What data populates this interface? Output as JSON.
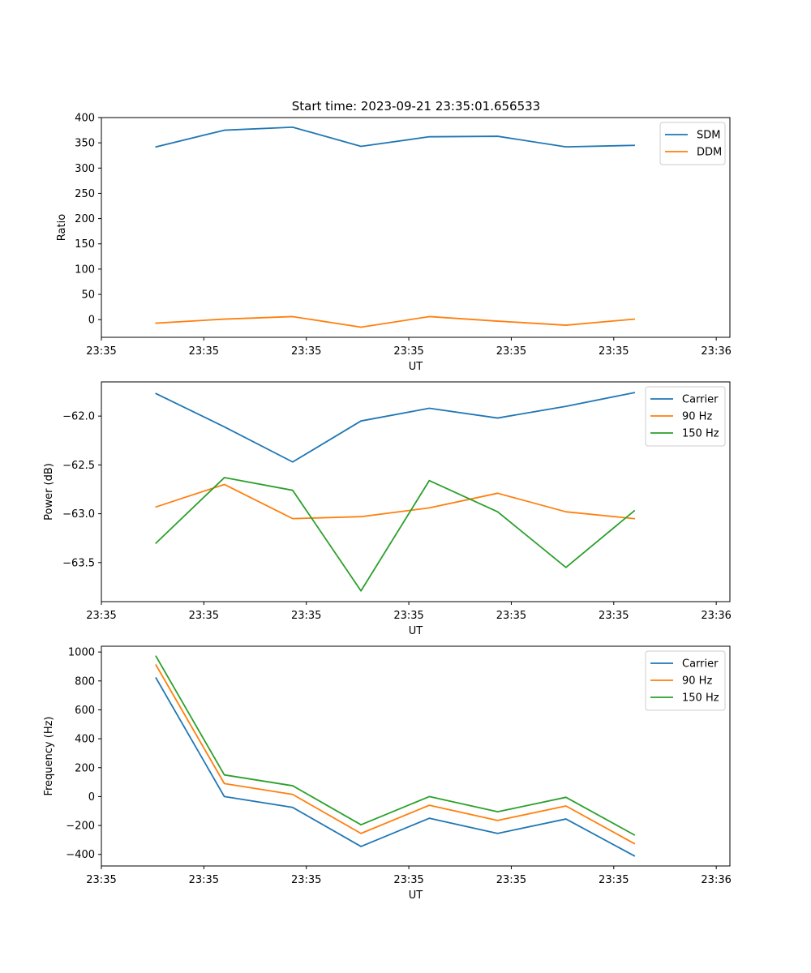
{
  "figure": {
    "title": "Start time: 2023-09-21 23:35:01.656533"
  },
  "colors": {
    "blue": "#1f77b4",
    "orange": "#ff7f0e",
    "green": "#2ca02c"
  },
  "chart_data": [
    {
      "type": "line",
      "title": "Start time: 2023-09-21 23:35:01.656533",
      "xlabel": "UT",
      "ylabel": "Ratio",
      "x": [
        1,
        2,
        3,
        4,
        5,
        6,
        7,
        8
      ],
      "xlim": [
        0.2,
        9.4
      ],
      "xticks": [
        0.2,
        1.7,
        3.2,
        4.7,
        6.2,
        7.7,
        9.2
      ],
      "xtick_labels": [
        "23:35",
        "23:35",
        "23:35",
        "23:35",
        "23:35",
        "23:35",
        "23:36"
      ],
      "ylim": [
        -35,
        400
      ],
      "yticks": [
        0,
        50,
        100,
        150,
        200,
        250,
        300,
        350,
        400
      ],
      "ytick_labels": [
        "0",
        "50",
        "100",
        "150",
        "200",
        "250",
        "300",
        "350",
        "400"
      ],
      "legend": "top-right",
      "series": [
        {
          "name": "SDM",
          "color": "#1f77b4",
          "values": [
            342,
            375,
            381,
            343,
            362,
            363,
            342,
            345
          ]
        },
        {
          "name": "DDM",
          "color": "#ff7f0e",
          "values": [
            -7,
            1,
            6,
            -15,
            6,
            -3,
            -11,
            1
          ]
        }
      ]
    },
    {
      "type": "line",
      "title": "",
      "xlabel": "UT",
      "ylabel": "Power (dB)",
      "x": [
        1,
        2,
        3,
        4,
        5,
        6,
        7,
        8
      ],
      "xlim": [
        0.2,
        9.4
      ],
      "xticks": [
        0.2,
        1.7,
        3.2,
        4.7,
        6.2,
        7.7,
        9.2
      ],
      "xtick_labels": [
        "23:35",
        "23:35",
        "23:35",
        "23:35",
        "23:35",
        "23:35",
        "23:36"
      ],
      "ylim": [
        -63.9,
        -61.65
      ],
      "yticks": [
        -63.5,
        -63.0,
        -62.5,
        -62.0
      ],
      "ytick_labels": [
        "−63.5",
        "−63.0",
        "−62.5",
        "−62.0"
      ],
      "legend": "top-right",
      "series": [
        {
          "name": "Carrier",
          "color": "#1f77b4",
          "values": [
            -61.77,
            -62.11,
            -62.47,
            -62.05,
            -61.92,
            -62.02,
            -61.9,
            -61.76
          ]
        },
        {
          "name": "90 Hz",
          "color": "#ff7f0e",
          "values": [
            -62.93,
            -62.7,
            -63.05,
            -63.03,
            -62.94,
            -62.79,
            -62.98,
            -63.05
          ]
        },
        {
          "name": "150 Hz",
          "color": "#2ca02c",
          "values": [
            -63.3,
            -62.63,
            -62.76,
            -63.79,
            -62.66,
            -62.98,
            -63.55,
            -62.97
          ]
        }
      ]
    },
    {
      "type": "line",
      "title": "",
      "xlabel": "UT",
      "ylabel": "Frequency (Hz)",
      "x": [
        1,
        2,
        3,
        4,
        5,
        6,
        7,
        8
      ],
      "xlim": [
        0.2,
        9.4
      ],
      "xticks": [
        0.2,
        1.7,
        3.2,
        4.7,
        6.2,
        7.7,
        9.2
      ],
      "xtick_labels": [
        "23:35",
        "23:35",
        "23:35",
        "23:35",
        "23:35",
        "23:35",
        "23:36"
      ],
      "ylim": [
        -480,
        1040
      ],
      "yticks": [
        -400,
        -200,
        0,
        200,
        400,
        600,
        800,
        1000
      ],
      "ytick_labels": [
        "−400",
        "−200",
        "0",
        "200",
        "400",
        "600",
        "800",
        "1000"
      ],
      "legend": "top-right",
      "series": [
        {
          "name": "Carrier",
          "color": "#1f77b4",
          "values": [
            820,
            0,
            -75,
            -345,
            -150,
            -255,
            -155,
            -410
          ]
        },
        {
          "name": "90 Hz",
          "color": "#ff7f0e",
          "values": [
            910,
            90,
            15,
            -255,
            -60,
            -165,
            -65,
            -325
          ]
        },
        {
          "name": "150 Hz",
          "color": "#2ca02c",
          "values": [
            970,
            150,
            75,
            -195,
            0,
            -105,
            -5,
            -265
          ]
        }
      ]
    }
  ]
}
